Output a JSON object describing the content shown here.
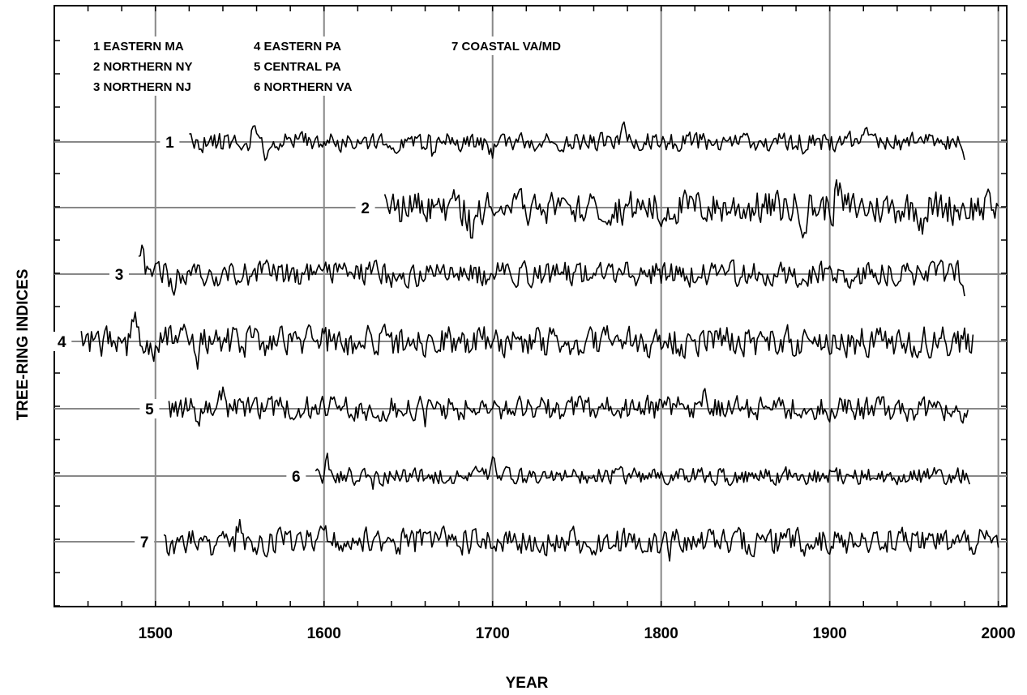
{
  "chart_data": {
    "type": "line",
    "xlabel": "YEAR",
    "ylabel": "TREE-RING INDICES",
    "xlim": [
      1440,
      2005
    ],
    "x_ticks": [
      1500,
      1600,
      1700,
      1800,
      1900,
      2000
    ],
    "grid": true,
    "legend_placement": "top-left",
    "legend": [
      "1 EASTERN MA",
      "2 NORTHERN NY",
      "3 NORTHERN NJ",
      "4 EASTERN PA",
      "5 CENTRAL PA",
      "6 NORTHERN VA",
      "7 COASTAL VA/MD"
    ],
    "series": [
      {
        "label": "1",
        "start": 1520,
        "end": 1980,
        "amp": 1.0,
        "seed": 11,
        "anomalies": [
          [
            1558,
            1.6
          ],
          [
            1565,
            -1.4
          ],
          [
            1665,
            -1.6
          ],
          [
            1700,
            -1.3
          ],
          [
            1778,
            1.9
          ],
          [
            1885,
            -1.5
          ],
          [
            1920,
            1.6
          ],
          [
            1980,
            -1.6
          ]
        ]
      },
      {
        "label": "2",
        "start": 1636,
        "end": 2000,
        "amp": 1.8,
        "seed": 22,
        "anomalies": [
          [
            1640,
            1.4
          ],
          [
            1687,
            -2.0
          ],
          [
            1760,
            2.6
          ],
          [
            1800,
            -1.6
          ],
          [
            1905,
            2.3
          ],
          [
            1885,
            -1.7
          ],
          [
            1955,
            -1.4
          ]
        ]
      },
      {
        "label": "3",
        "start": 1490,
        "end": 1980,
        "amp": 1.3,
        "seed": 33,
        "anomalies": [
          [
            1492,
            2.9
          ],
          [
            1510,
            -1.5
          ],
          [
            1640,
            -1.5
          ],
          [
            1870,
            1.5
          ],
          [
            1980,
            -1.6
          ]
        ]
      },
      {
        "label": "4",
        "start": 1456,
        "end": 1985,
        "amp": 1.6,
        "seed": 44,
        "anomalies": [
          [
            1488,
            2.3
          ],
          [
            1480,
            1.6
          ],
          [
            1500,
            -1.4
          ],
          [
            1525,
            -1.4
          ],
          [
            1665,
            -1.6
          ],
          [
            1700,
            -1.5
          ],
          [
            1750,
            -1.3
          ],
          [
            1860,
            1.6
          ],
          [
            1880,
            -1.4
          ]
        ]
      },
      {
        "label": "5",
        "start": 1508,
        "end": 1982,
        "amp": 1.3,
        "seed": 55,
        "anomalies": [
          [
            1525,
            -1.5
          ],
          [
            1540,
            1.6
          ],
          [
            1660,
            -1.4
          ],
          [
            1825,
            1.7
          ],
          [
            1890,
            -1.4
          ]
        ]
      },
      {
        "label": "6",
        "start": 1595,
        "end": 1983,
        "amp": 0.9,
        "seed": 66,
        "anomalies": [
          [
            1602,
            1.6
          ],
          [
            1628,
            -1.3
          ],
          [
            1700,
            1.5
          ],
          [
            1720,
            -1.4
          ]
        ]
      },
      {
        "label": "7",
        "start": 1505,
        "end": 2000,
        "amp": 1.4,
        "seed": 77,
        "anomalies": [
          [
            1525,
            -1.6
          ],
          [
            1530,
            1.8
          ],
          [
            1550,
            2.0
          ],
          [
            1535,
            -1.4
          ],
          [
            1600,
            1.8
          ],
          [
            1700,
            -1.5
          ],
          [
            1805,
            -1.2
          ],
          [
            1922,
            -1.3
          ]
        ]
      }
    ]
  }
}
